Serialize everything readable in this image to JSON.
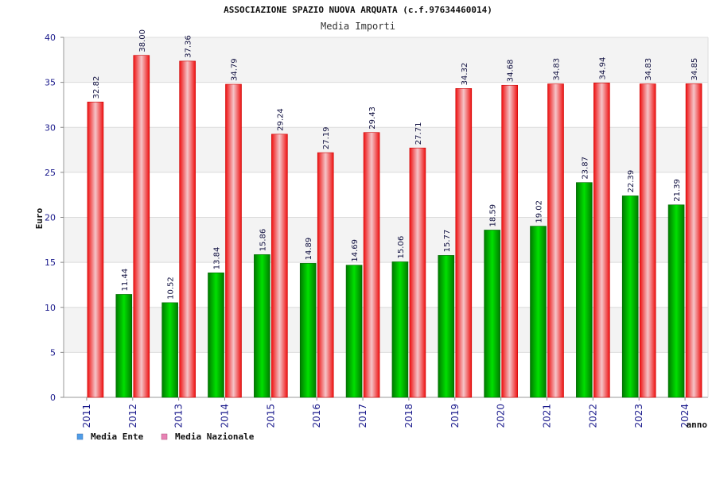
{
  "header": {
    "title": "ASSOCIAZIONE SPAZIO NUOVA ARQUATA (c.f.97634460014)",
    "subtitle": "Media Importi"
  },
  "chart_data": {
    "type": "bar",
    "title": "ASSOCIAZIONE SPAZIO NUOVA ARQUATA (c.f.97634460014)",
    "subtitle": "Media Importi",
    "xlabel": "anno",
    "ylabel": "Euro",
    "ylim": [
      0,
      40
    ],
    "yticks": [
      "0",
      "5",
      "10",
      "15",
      "20",
      "25",
      "30",
      "35",
      "40"
    ],
    "categories": [
      "2011",
      "2012",
      "2013",
      "2014",
      "2015",
      "2016",
      "2017",
      "2018",
      "2019",
      "2020",
      "2021",
      "2022",
      "2023",
      "2024"
    ],
    "series": [
      {
        "name": "Media Ente",
        "color": "#00cc00",
        "values": [
          null,
          11.44,
          10.52,
          13.84,
          15.86,
          14.89,
          14.69,
          15.06,
          15.77,
          18.59,
          19.02,
          23.87,
          22.39,
          21.39
        ],
        "labels": [
          "",
          "11.44",
          "10.52",
          "13.84",
          "15.86",
          "14.89",
          "14.69",
          "15.06",
          "15.77",
          "18.59",
          "19.02",
          "23.87",
          "22.39",
          "21.39"
        ]
      },
      {
        "name": "Media Nazionale",
        "color": "#ff2020",
        "values": [
          32.82,
          38.0,
          37.36,
          34.79,
          29.24,
          27.19,
          29.43,
          27.71,
          34.32,
          34.68,
          34.83,
          34.94,
          34.83,
          34.85
        ],
        "labels": [
          "32.82",
          "38.00",
          "37.36",
          "34.79",
          "29.24",
          "27.19",
          "29.43",
          "27.71",
          "34.32",
          "34.68",
          "34.83",
          "34.94",
          "34.83",
          "34.85"
        ]
      }
    ],
    "grid": true,
    "legend": {
      "position": "bottom-left",
      "items": [
        {
          "label": "Media Ente",
          "swatch": "#4f9de8"
        },
        {
          "label": "Media Nazionale",
          "swatch": "#e882b4"
        }
      ]
    }
  }
}
